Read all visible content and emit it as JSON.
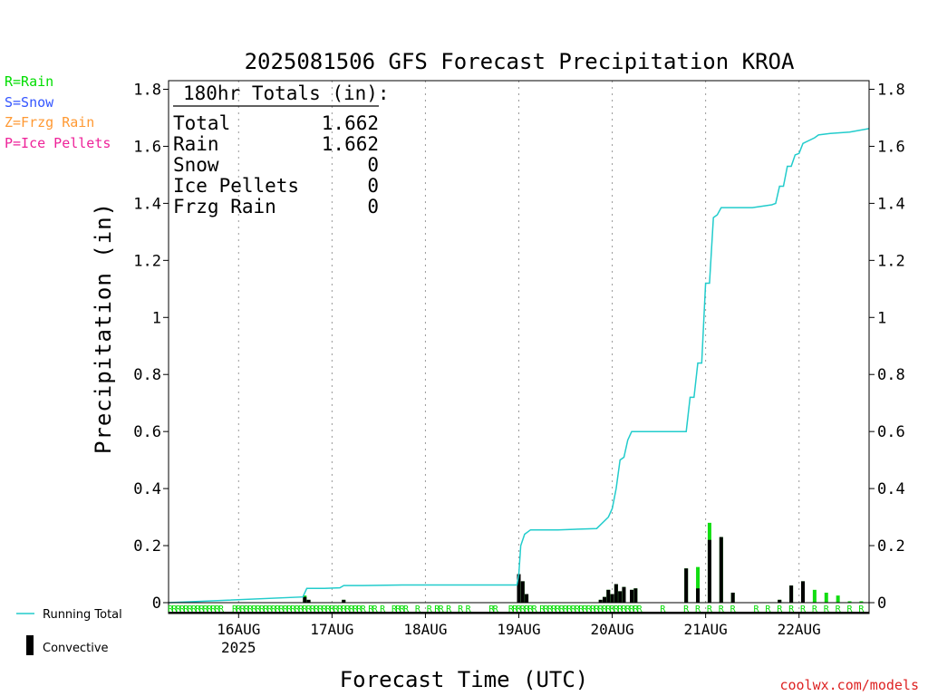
{
  "chart_data": {
    "type": "bar",
    "title": "2025081506 GFS Forecast Precipitation KROA",
    "xlabel": "Forecast Time (UTC)",
    "ylabel": "Precipitation (in)",
    "ylim": [
      0,
      1.8
    ],
    "xlim": [
      0,
      180
    ],
    "grid": "vertical dotted",
    "yticks": [
      0,
      0.2,
      0.4,
      0.6,
      0.8,
      1,
      1.2,
      1.4,
      1.6,
      1.8
    ],
    "xticks": [
      {
        "hour": 18,
        "label": "16AUG",
        "sublabel": "2025"
      },
      {
        "hour": 42,
        "label": "17AUG",
        "sublabel": ""
      },
      {
        "hour": 66,
        "label": "18AUG",
        "sublabel": ""
      },
      {
        "hour": 90,
        "label": "19AUG",
        "sublabel": ""
      },
      {
        "hour": 114,
        "label": "20AUG",
        "sublabel": ""
      },
      {
        "hour": 138,
        "label": "21AUG",
        "sublabel": ""
      },
      {
        "hour": 162,
        "label": "22AUG",
        "sublabel": ""
      }
    ],
    "totals_box": {
      "header": "180hr Totals (in):",
      "rows": [
        {
          "label": "Total",
          "value": "1.662"
        },
        {
          "label": "Rain",
          "value": "1.662"
        },
        {
          "label": "Snow",
          "value": "0"
        },
        {
          "label": "Ice Pellets",
          "value": "0"
        },
        {
          "label": "Frzg Rain",
          "value": "0"
        }
      ]
    },
    "ptype_legend": [
      {
        "text": "R=Rain",
        "color": "#00dd00"
      },
      {
        "text": "S=Snow",
        "color": "#3355ff"
      },
      {
        "text": "Z=Frzg Rain",
        "color": "#ff9933"
      },
      {
        "text": "P=Ice Pellets",
        "color": "#ee2299"
      }
    ],
    "series_legend": [
      {
        "name": "Running Total",
        "color": "#22cccc",
        "kind": "line"
      },
      {
        "name": "Convective",
        "color": "#000000",
        "kind": "bar"
      }
    ],
    "watermark": "coolwx.com/models",
    "running_total": {
      "x": [
        0,
        34.5,
        35.5,
        36.5,
        40,
        44,
        45,
        47,
        50,
        60,
        70,
        80,
        89.5,
        90,
        90.5,
        91.5,
        93,
        100,
        110,
        113,
        114,
        115,
        116,
        117,
        118,
        119,
        120,
        121,
        122,
        123,
        133,
        134,
        135,
        136,
        137,
        138,
        139,
        140,
        141,
        142,
        150,
        155,
        156,
        157,
        158,
        159,
        160,
        161,
        162,
        163,
        166,
        167,
        170,
        175,
        180
      ],
      "y": [
        0,
        0.02,
        0.05,
        0.05,
        0.05,
        0.052,
        0.06,
        0.06,
        0.06,
        0.062,
        0.062,
        0.062,
        0.062,
        0.1,
        0.2,
        0.24,
        0.255,
        0.255,
        0.26,
        0.3,
        0.33,
        0.4,
        0.5,
        0.51,
        0.57,
        0.6,
        0.6,
        0.6,
        0.6,
        0.6,
        0.6,
        0.72,
        0.72,
        0.84,
        0.84,
        1.12,
        1.12,
        1.35,
        1.36,
        1.385,
        1.385,
        1.395,
        1.4,
        1.46,
        1.46,
        1.53,
        1.53,
        1.57,
        1.575,
        1.61,
        1.63,
        1.64,
        1.645,
        1.65,
        1.662
      ]
    },
    "bars": [
      {
        "x": 35,
        "total": 0.025,
        "conv": 0.02
      },
      {
        "x": 36,
        "total": 0.01,
        "conv": 0.01
      },
      {
        "x": 45,
        "total": 0.01,
        "conv": 0.01
      },
      {
        "x": 90,
        "total": 0.1,
        "conv": 0.1
      },
      {
        "x": 91,
        "total": 0.075,
        "conv": 0.075
      },
      {
        "x": 92,
        "total": 0.03,
        "conv": 0.03
      },
      {
        "x": 111,
        "total": 0.01,
        "conv": 0.01
      },
      {
        "x": 112,
        "total": 0.02,
        "conv": 0.02
      },
      {
        "x": 113,
        "total": 0.045,
        "conv": 0.045
      },
      {
        "x": 114,
        "total": 0.03,
        "conv": 0.03
      },
      {
        "x": 115,
        "total": 0.065,
        "conv": 0.065
      },
      {
        "x": 116,
        "total": 0.04,
        "conv": 0.04
      },
      {
        "x": 117,
        "total": 0.055,
        "conv": 0.055
      },
      {
        "x": 119,
        "total": 0.045,
        "conv": 0.045
      },
      {
        "x": 120,
        "total": 0.05,
        "conv": 0.05
      },
      {
        "x": 133,
        "total": 0.12,
        "conv": 0.12
      },
      {
        "x": 136,
        "total": 0.125,
        "conv": 0.05
      },
      {
        "x": 139,
        "total": 0.28,
        "conv": 0.22
      },
      {
        "x": 142,
        "total": 0.23,
        "conv": 0.23
      },
      {
        "x": 145,
        "total": 0.035,
        "conv": 0.035
      },
      {
        "x": 157,
        "total": 0.01,
        "conv": 0.01
      },
      {
        "x": 160,
        "total": 0.06,
        "conv": 0.06
      },
      {
        "x": 163,
        "total": 0.075,
        "conv": 0.075
      },
      {
        "x": 166,
        "total": 0.045,
        "conv": 0.0
      },
      {
        "x": 169,
        "total": 0.035,
        "conv": 0.0
      },
      {
        "x": 172,
        "total": 0.025,
        "conv": 0.0
      },
      {
        "x": 175,
        "total": 0.005,
        "conv": 0.0
      },
      {
        "x": 178,
        "total": 0.005,
        "conv": 0.0
      }
    ],
    "ptype_markers": {
      "symbol": "R",
      "hours": [
        0.5,
        1.5,
        2.5,
        3.5,
        4.5,
        5.5,
        6.5,
        7.5,
        8.5,
        9.5,
        10.5,
        11.5,
        12.5,
        13.5,
        17,
        18,
        19,
        20,
        21,
        22,
        23,
        24,
        25,
        26,
        27,
        28,
        29,
        30,
        31,
        32,
        33,
        34,
        35,
        36,
        37,
        38,
        39,
        40,
        41,
        42,
        43,
        44,
        45,
        46,
        47,
        48,
        49,
        50,
        52,
        53,
        55,
        58,
        59,
        60,
        61,
        64,
        67,
        69,
        70,
        72,
        75,
        77,
        83,
        84,
        88,
        89,
        90,
        91,
        92,
        93,
        94,
        96,
        97,
        98,
        99,
        100,
        101,
        102,
        103,
        104,
        105,
        106,
        107,
        108,
        109,
        110,
        111,
        112,
        113,
        114,
        115,
        116,
        117,
        118,
        119,
        120,
        121,
        127,
        133,
        136,
        139,
        142,
        145,
        151,
        154,
        157,
        160,
        163,
        166,
        169,
        172,
        175,
        178
      ]
    }
  }
}
